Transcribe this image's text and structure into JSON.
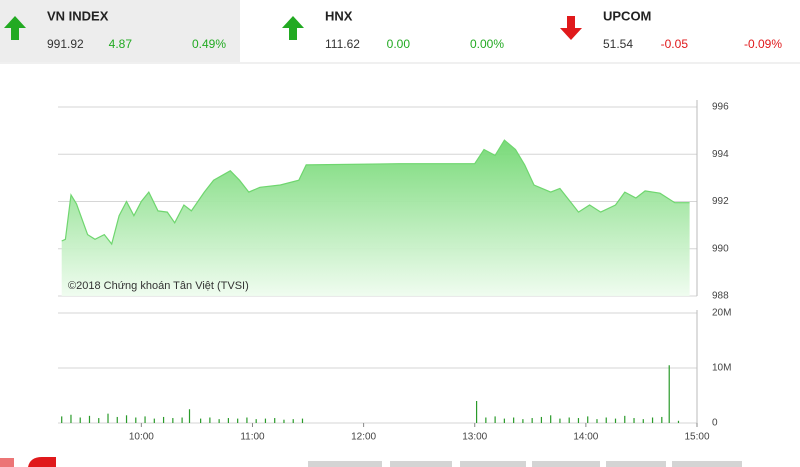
{
  "tickers": [
    {
      "name": "VN INDEX",
      "value": "991.92",
      "change": "4.87",
      "percent": "0.49%",
      "direction": "up",
      "color": "#22aa22"
    },
    {
      "name": "HNX",
      "value": "111.62",
      "change": "0.00",
      "percent": "0.00%",
      "direction": "up",
      "color": "#22aa22"
    },
    {
      "name": "UPCOM",
      "value": "51.54",
      "change": "-0.05",
      "percent": "-0.09%",
      "direction": "down",
      "color": "#e0191b"
    }
  ],
  "chart_data": [
    {
      "type": "area",
      "annotation": "©2018 Chứng khoán Tân Việt (TVSI)",
      "color": "#6fd66f",
      "x": [
        557,
        559,
        562,
        565,
        571,
        575,
        580,
        584,
        588,
        592,
        596,
        600,
        604,
        609,
        614,
        618,
        623,
        627,
        634,
        639,
        648,
        653,
        658,
        664,
        675,
        685,
        689,
        739,
        780,
        785,
        791,
        796,
        802,
        807,
        812,
        821,
        826,
        831,
        836,
        842,
        848,
        856,
        861,
        867,
        872,
        880,
        888,
        896
      ],
      "values": [
        990.33,
        990.4,
        992.28,
        991.9,
        990.6,
        990.4,
        990.6,
        990.2,
        991.4,
        992.0,
        991.4,
        992.0,
        992.4,
        991.6,
        991.55,
        991.1,
        991.85,
        991.6,
        992.4,
        992.9,
        993.3,
        992.9,
        992.4,
        992.6,
        992.7,
        992.9,
        993.55,
        993.6,
        993.6,
        994.2,
        993.95,
        994.6,
        994.2,
        993.55,
        992.7,
        992.4,
        992.55,
        992.05,
        991.55,
        991.85,
        991.55,
        991.85,
        992.4,
        992.15,
        992.45,
        992.35,
        991.95,
        991.95
      ],
      "xlim": [
        555,
        900
      ],
      "ylim": [
        988,
        996
      ],
      "yticks": [
        988,
        990,
        992,
        994,
        996
      ],
      "grid": true
    },
    {
      "type": "bar",
      "color": "#2a9a2a",
      "x": [
        557,
        562,
        567,
        572,
        577,
        582,
        587,
        592,
        597,
        602,
        607,
        612,
        617,
        622,
        626,
        632,
        637,
        642,
        647,
        652,
        657,
        662,
        667,
        672,
        677,
        682,
        687,
        781,
        786,
        791,
        796,
        801,
        806,
        811,
        816,
        821,
        826,
        831,
        836,
        841,
        846,
        851,
        856,
        861,
        866,
        871,
        876,
        881,
        885,
        890
      ],
      "values": [
        1200000,
        1500000,
        1000000,
        1300000,
        900000,
        1700000,
        1100000,
        1400000,
        1000000,
        1200000,
        800000,
        1100000,
        900000,
        1000000,
        2500000,
        800000,
        1000000,
        700000,
        900000,
        800000,
        1000000,
        700000,
        800000,
        900000,
        600000,
        700000,
        800000,
        4000000,
        1000000,
        1200000,
        800000,
        1000000,
        700000,
        900000,
        1100000,
        1400000,
        800000,
        1000000,
        900000,
        1200000,
        700000,
        1000000,
        800000,
        1300000,
        900000,
        700000,
        1000000,
        1100000,
        10500000,
        400000
      ],
      "xlim": [
        555,
        900
      ],
      "ylim": [
        0,
        20000000
      ],
      "yticks": [
        {
          "value": 0,
          "label": "0"
        },
        {
          "value": 10000000,
          "label": "10M"
        },
        {
          "value": 20000000,
          "label": "20M"
        }
      ],
      "xticks": [
        {
          "value": 600,
          "label": "10:00"
        },
        {
          "value": 660,
          "label": "11:00"
        },
        {
          "value": 720,
          "label": "12:00"
        },
        {
          "value": 780,
          "label": "13:00"
        },
        {
          "value": 840,
          "label": "14:00"
        },
        {
          "value": 900,
          "label": "15:00"
        }
      ],
      "grid": true
    }
  ]
}
